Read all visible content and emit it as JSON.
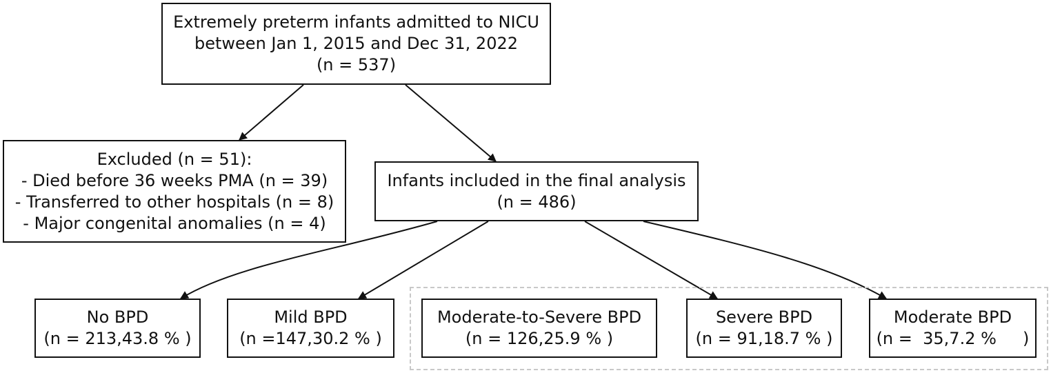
{
  "boxes": {
    "admitted": {
      "line1": "Extremely preterm infants admitted to NICU",
      "line2": "between Jan 1, 2015 and Dec 31, 2022",
      "line3": "(n = 537)"
    },
    "excluded": {
      "line1": "Excluded (n = 51):",
      "line2": "- Died before 36 weeks PMA (n = 39)",
      "line3": "- Transferred to other hospitals (n = 8)",
      "line4": "- Major congenital anomalies (n = 4)"
    },
    "included": {
      "line1": "Infants included in the final analysis",
      "line2": "(n = 486)"
    },
    "no_bpd": {
      "line1": "No BPD",
      "line2": "(n = 213,43.8 % )"
    },
    "mild_bpd": {
      "line1": "Mild BPD",
      "line2": "(n =147,30.2 %  )"
    },
    "mod_severe_bpd": {
      "line1": "Moderate-to-Severe BPD",
      "line2": "(n = 126,25.9 %  )"
    },
    "severe_bpd": {
      "line1": "Severe BPD",
      "line2": "(n = 91,18.7 % )"
    },
    "moderate_bpd": {
      "line1": "Moderate BPD",
      "line2": "(n =  35,7.2 %     )"
    }
  }
}
